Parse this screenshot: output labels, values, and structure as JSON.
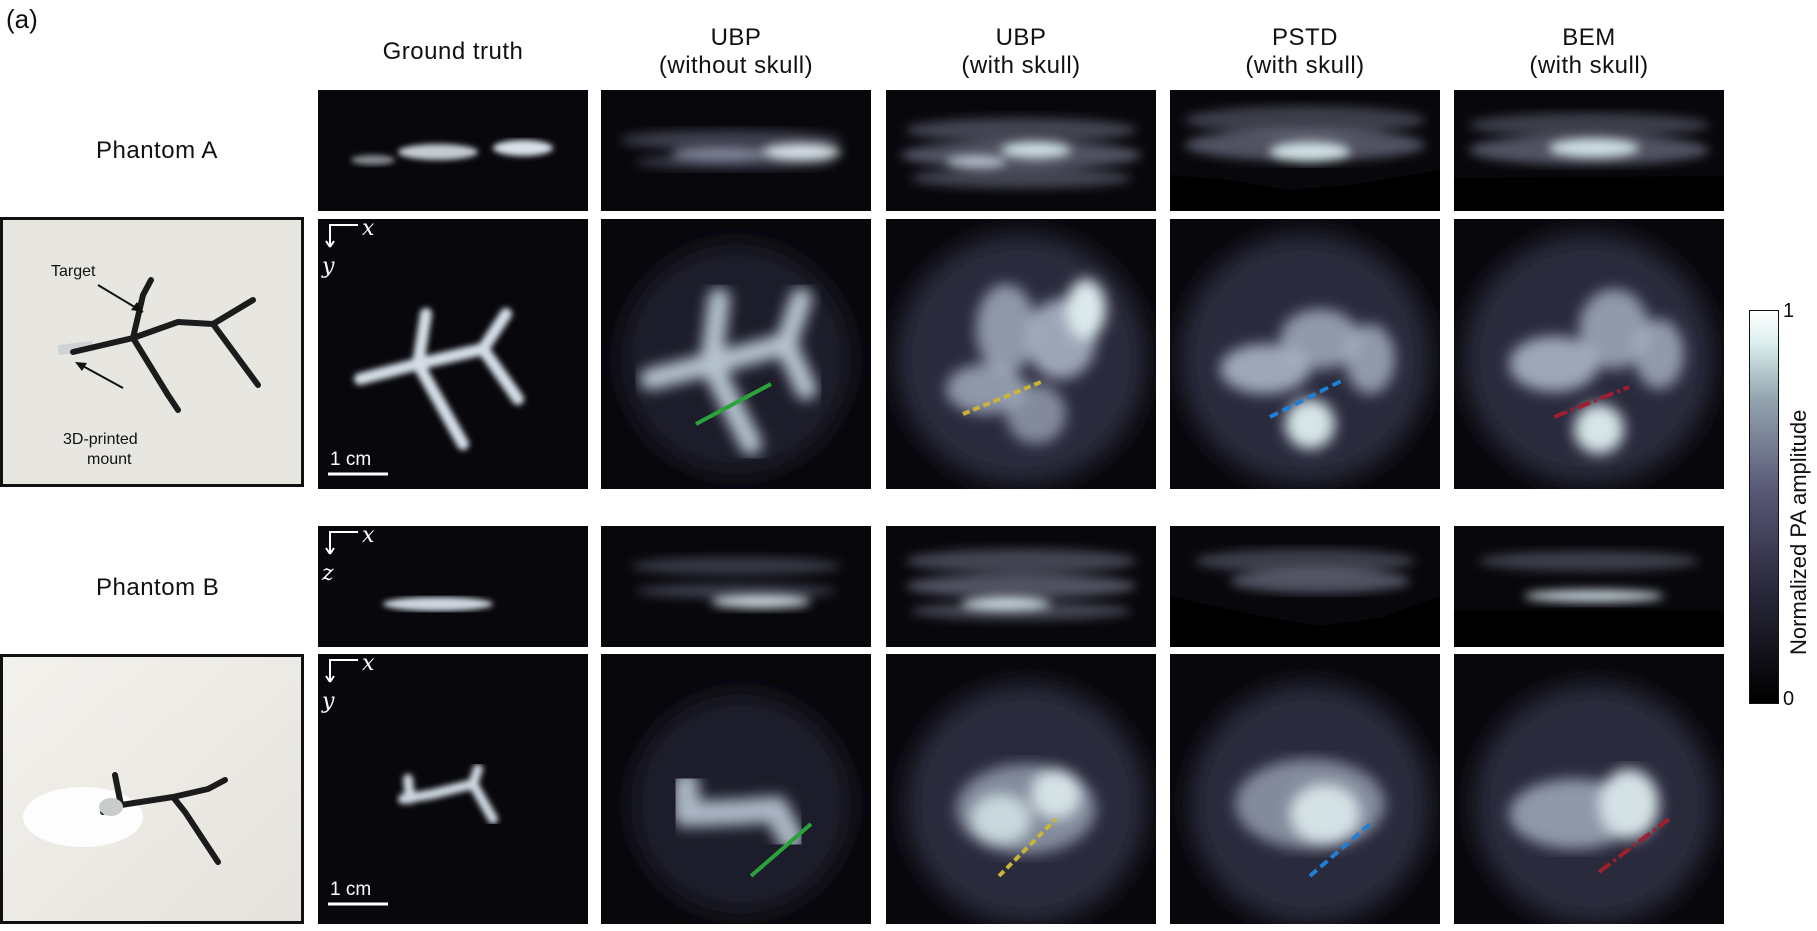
{
  "panel_label": "(a)",
  "columns": [
    {
      "line1": "Ground truth",
      "line2": ""
    },
    {
      "line1": "UBP",
      "line2": "(without skull)"
    },
    {
      "line1": "UBP",
      "line2": "(with skull)"
    },
    {
      "line1": "PSTD",
      "line2": "(with skull)"
    },
    {
      "line1": "BEM",
      "line2": "(with skull)"
    }
  ],
  "rows": [
    {
      "title": "Phantom A",
      "photo_labels": {
        "target": "Target",
        "mount_line1": "3D-printed",
        "mount_line2": "mount"
      }
    },
    {
      "title": "Phantom B"
    }
  ],
  "axes": {
    "x": "x",
    "z": "z",
    "y": "y"
  },
  "scale_bar": "1 cm",
  "colorbar": {
    "label": "Normalized PA amplitude",
    "max": "1",
    "min": "0",
    "colors": [
      "#000000",
      "#2b2a3e",
      "#5a5a78",
      "#95a6b0",
      "#dcefee",
      "#ffffff"
    ]
  },
  "profile_line_colors": {
    "ubp_without_skull": "#2aa33a",
    "ubp_with_skull": "#c9b437",
    "pstd": "#1f7fd6",
    "bem": "#a01f2e"
  }
}
